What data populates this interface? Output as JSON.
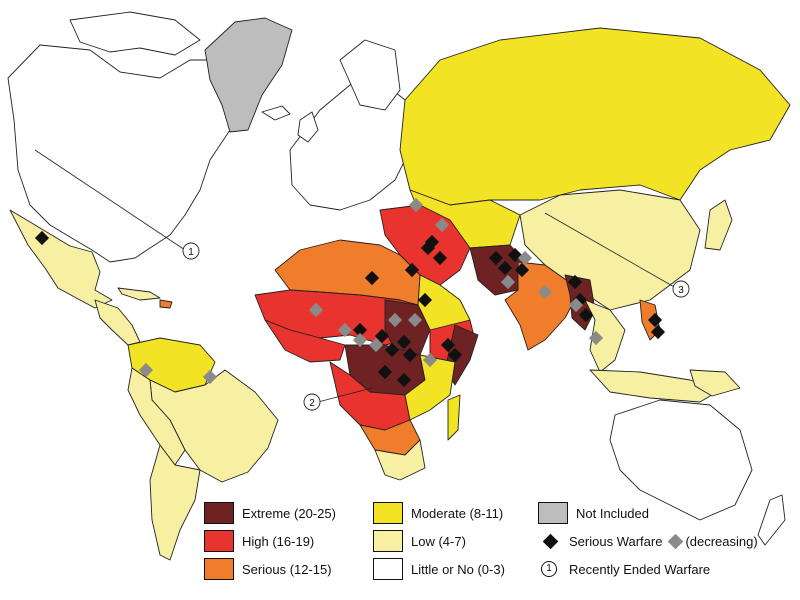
{
  "colors": {
    "extreme": "#6e2223",
    "high": "#e8332e",
    "serious": "#ef7d2c",
    "moderate": "#f2e324",
    "low": "#f7f0a3",
    "little": "#ffffff",
    "not_included": "#bdbdbd",
    "warfare": "#111111",
    "warfare_decreasing": "#8a8a8a",
    "outline": "#222222"
  },
  "legend": {
    "extreme": "Extreme (20-25)",
    "high": "High (16-19)",
    "serious": "Serious (12-15)",
    "moderate": "Moderate (8-11)",
    "low": "Low (4-7)",
    "little": "Little or No (0-3)",
    "not_included": "Not Included",
    "serious_warfare": "Serious Warfare",
    "decreasing": "(decreasing)",
    "recently_ended": "Recently Ended Warfare",
    "recently_ended_marker": "1"
  },
  "callouts": [
    "1",
    "2",
    "3"
  ],
  "icons": {
    "serious_warfare": "black-diamond-icon",
    "decreasing": "gray-diamond-icon",
    "recently_ended": "numbered-circle-icon"
  }
}
